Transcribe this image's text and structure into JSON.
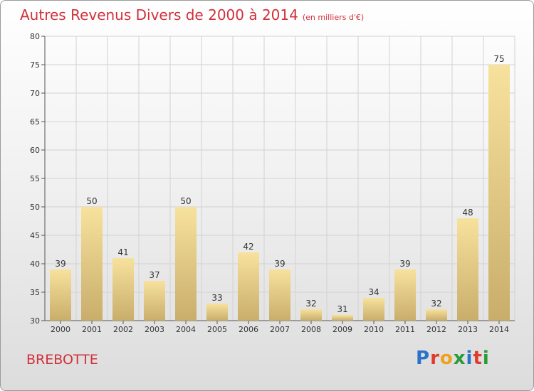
{
  "header": {
    "title": "Autres Revenus Divers de 2000 à 2014",
    "subtitle": "(en milliers d'€)"
  },
  "footer": {
    "town": "BREBOTTE",
    "logo": [
      "P",
      "r",
      "o",
      "x",
      "i",
      "t",
      "i"
    ],
    "logo_colors": [
      "#2a73c8",
      "#e23b2a",
      "#f0a11b",
      "#2a9b3a",
      "#2a73c8",
      "#e23b2a",
      "#2a9b3a"
    ]
  },
  "chart_data": {
    "type": "bar",
    "categories": [
      "2000",
      "2001",
      "2002",
      "2003",
      "2004",
      "2005",
      "2006",
      "2007",
      "2008",
      "2009",
      "2010",
      "2011",
      "2012",
      "2013",
      "2014"
    ],
    "values": [
      39,
      50,
      41,
      37,
      50,
      33,
      42,
      39,
      32,
      31,
      34,
      39,
      32,
      48,
      75
    ],
    "ylim": [
      30,
      80
    ],
    "yticks": [
      30,
      35,
      40,
      45,
      50,
      55,
      60,
      65,
      70,
      75,
      80
    ],
    "grid": true,
    "bar_color_top": "#f7e29d",
    "bar_color_bottom": "#c9ad6b"
  }
}
